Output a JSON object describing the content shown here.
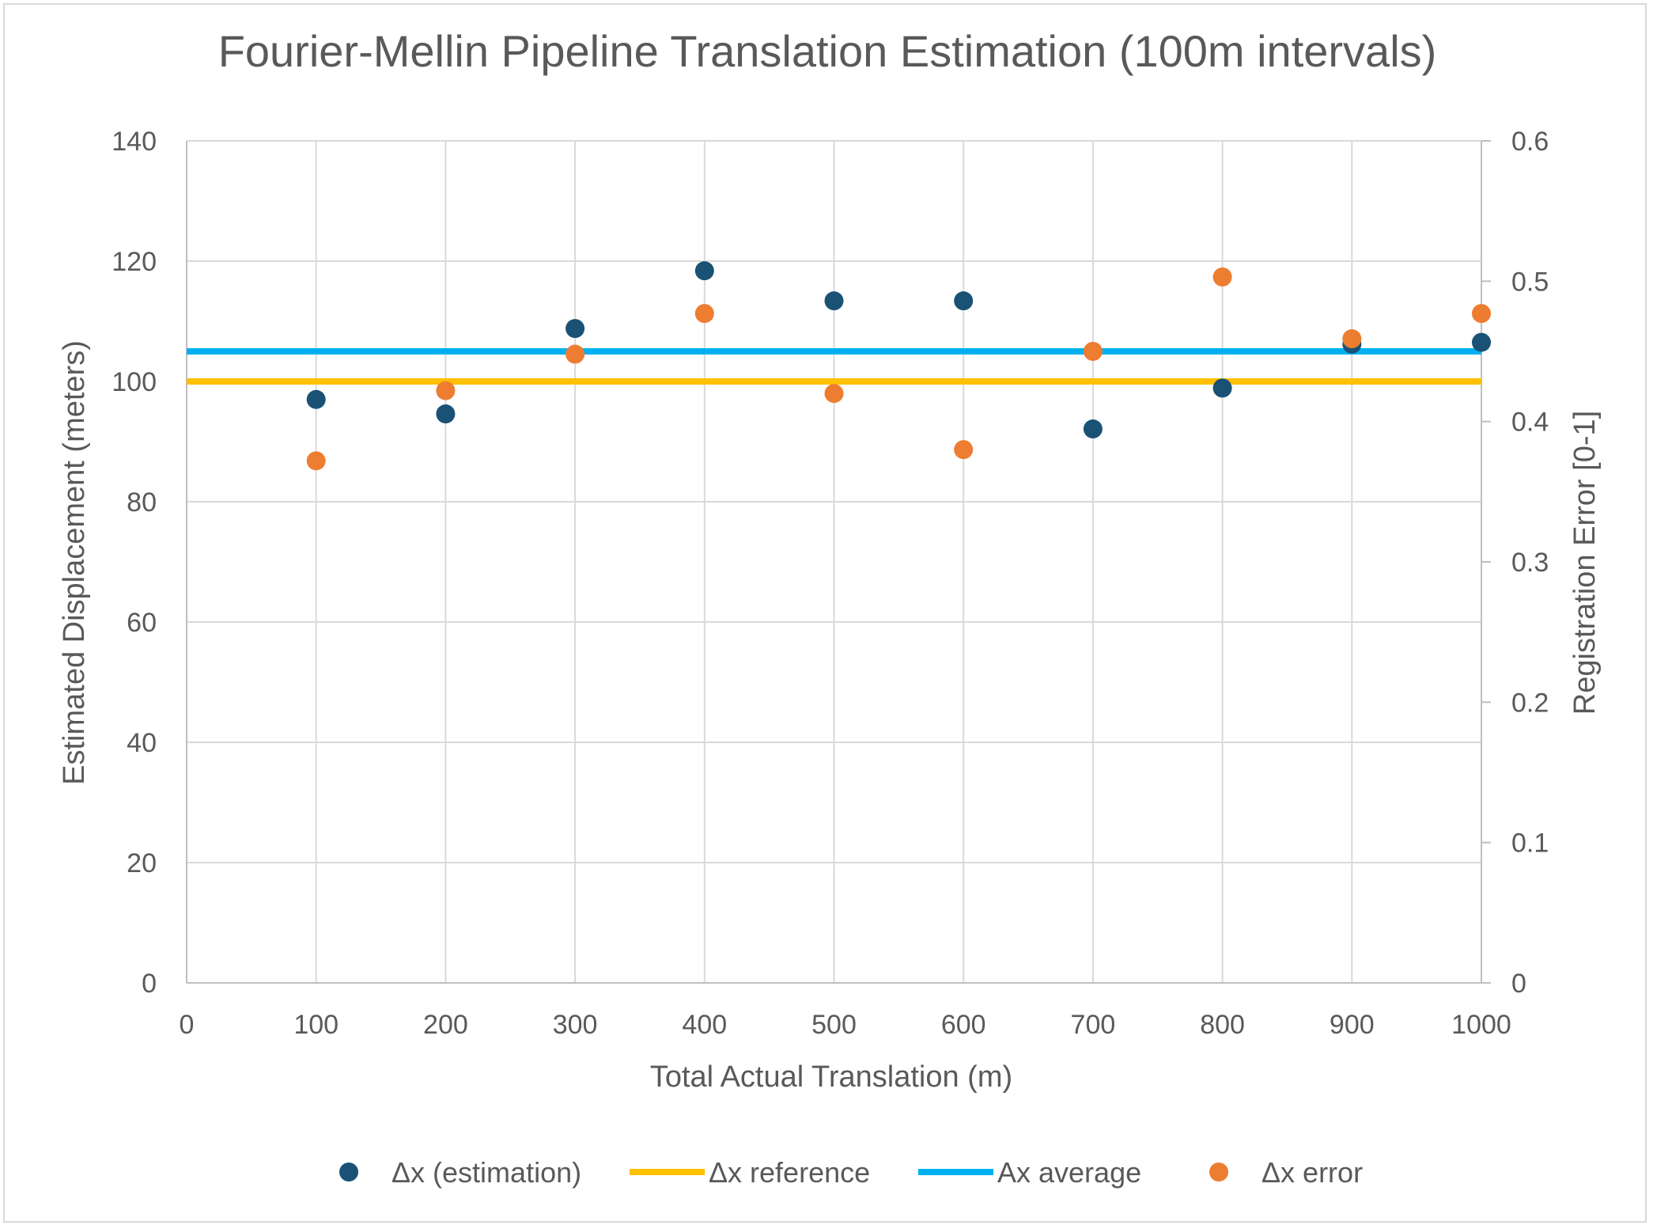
{
  "chart_data": {
    "type": "scatter",
    "title": "Fourier-Mellin Pipeline Translation Estimation (100m intervals)",
    "xlabel": "Total Actual Translation (m)",
    "ylabel": "Estimated Displacement (meters)",
    "y2label": "Registration Error [0-1]",
    "xlim": [
      0,
      1000
    ],
    "ylim": [
      0,
      140
    ],
    "y2lim": [
      0,
      0.6
    ],
    "x_ticks": [
      "0",
      "100",
      "200",
      "300",
      "400",
      "500",
      "600",
      "700",
      "800",
      "900",
      "1000"
    ],
    "y_ticks": [
      "0",
      "20",
      "40",
      "60",
      "80",
      "100",
      "120",
      "140"
    ],
    "y2_ticks": [
      "0",
      "0.1",
      "0.2",
      "0.3",
      "0.4",
      "0.5",
      "0.6"
    ],
    "grid": true,
    "legend_position": "bottom",
    "series": [
      {
        "name": "Δx (estimation)",
        "kind": "scatter",
        "axis": "left",
        "color": "#1a5276",
        "x": [
          100,
          200,
          300,
          400,
          500,
          600,
          700,
          800,
          900,
          1000
        ],
        "y": [
          97.0,
          94.6,
          108.8,
          118.4,
          113.4,
          113.4,
          92.1,
          98.9,
          106.2,
          106.5
        ]
      },
      {
        "name": "Δx reference",
        "kind": "hline",
        "axis": "left",
        "color": "#ffc000",
        "y": 100
      },
      {
        "name": "Ax average",
        "kind": "hline",
        "axis": "left",
        "color": "#00b0f0",
        "y": 105
      },
      {
        "name": "Δx error",
        "kind": "scatter",
        "axis": "right",
        "color": "#ed7d31",
        "x": [
          100,
          200,
          300,
          400,
          500,
          600,
          700,
          800,
          900,
          1000
        ],
        "y": [
          0.372,
          0.422,
          0.448,
          0.477,
          0.42,
          0.38,
          0.45,
          0.503,
          0.459,
          0.477
        ]
      }
    ]
  }
}
